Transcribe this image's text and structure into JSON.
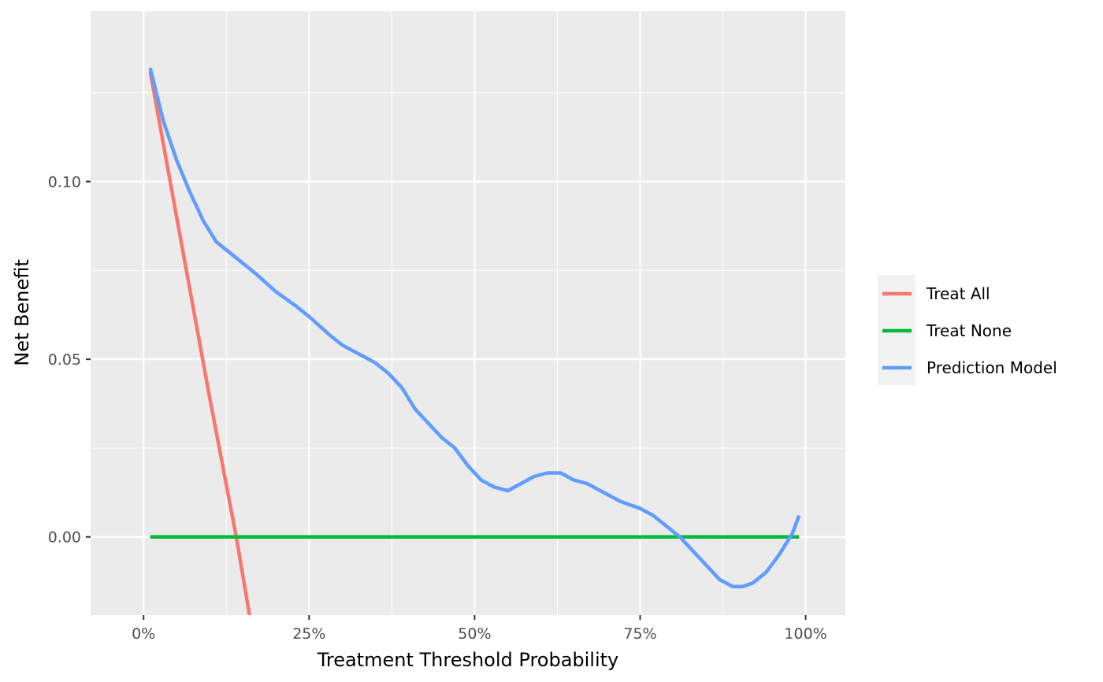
{
  "chart_data": {
    "type": "line",
    "xlabel": "Treatment Threshold Probability",
    "ylabel": "Net Benefit",
    "xlim": [
      -0.08,
      1.06
    ],
    "ylim": [
      -0.022,
      0.148
    ],
    "x_ticks": [
      0,
      0.25,
      0.5,
      0.75,
      1.0
    ],
    "x_tick_labels": [
      "0%",
      "25%",
      "50%",
      "75%",
      "100%"
    ],
    "y_ticks": [
      0.0,
      0.05,
      0.1
    ],
    "y_tick_labels": [
      "0.00",
      "0.05",
      "0.10"
    ],
    "grid": true,
    "legend_position": "right",
    "series": [
      {
        "name": "Treat All",
        "color": "#F8766D",
        "x": [
          0.01,
          0.05,
          0.1,
          0.14,
          0.16
        ],
        "y": [
          0.131,
          0.09,
          0.039,
          0.0,
          -0.022
        ]
      },
      {
        "name": "Treat None",
        "color": "#00BA38",
        "x": [
          0.01,
          0.99
        ],
        "y": [
          0.0,
          0.0
        ]
      },
      {
        "name": "Prediction Model",
        "color": "#619CFF",
        "x": [
          0.01,
          0.03,
          0.05,
          0.07,
          0.09,
          0.11,
          0.13,
          0.15,
          0.17,
          0.2,
          0.23,
          0.25,
          0.28,
          0.3,
          0.33,
          0.35,
          0.37,
          0.39,
          0.41,
          0.43,
          0.45,
          0.47,
          0.49,
          0.51,
          0.53,
          0.55,
          0.57,
          0.59,
          0.61,
          0.63,
          0.65,
          0.67,
          0.7,
          0.72,
          0.75,
          0.77,
          0.79,
          0.81,
          0.83,
          0.85,
          0.87,
          0.89,
          0.905,
          0.92,
          0.94,
          0.96,
          0.98,
          0.99
        ],
        "y": [
          0.132,
          0.117,
          0.106,
          0.097,
          0.089,
          0.083,
          0.08,
          0.077,
          0.074,
          0.069,
          0.065,
          0.062,
          0.057,
          0.054,
          0.051,
          0.049,
          0.046,
          0.042,
          0.036,
          0.032,
          0.028,
          0.025,
          0.02,
          0.016,
          0.014,
          0.013,
          0.015,
          0.017,
          0.018,
          0.018,
          0.016,
          0.015,
          0.012,
          0.01,
          0.008,
          0.006,
          0.003,
          0.0,
          -0.004,
          -0.008,
          -0.012,
          -0.014,
          -0.014,
          -0.013,
          -0.01,
          -0.005,
          0.001,
          0.006
        ]
      }
    ]
  }
}
